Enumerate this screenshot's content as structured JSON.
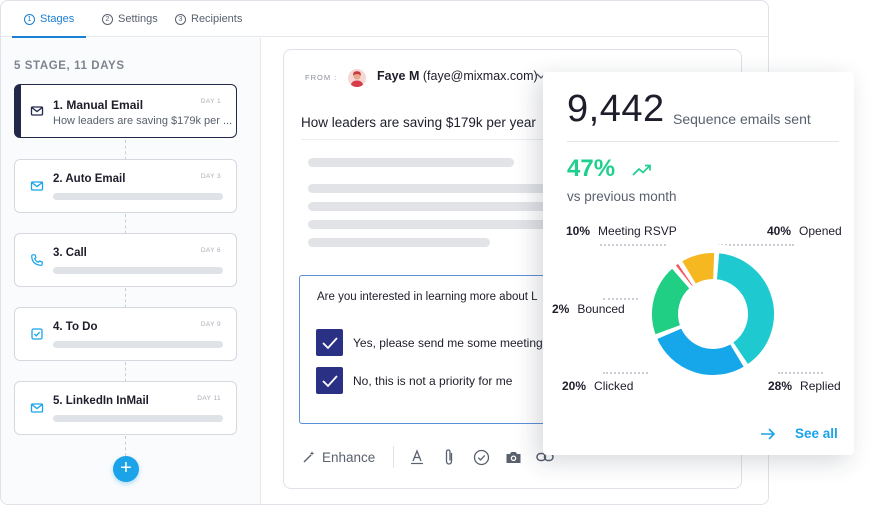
{
  "tabs": [
    {
      "num": "1",
      "label": "Stages"
    },
    {
      "num": "2",
      "label": "Settings"
    },
    {
      "num": "3",
      "label": "Recipients"
    }
  ],
  "sidebar": {
    "summary": "5 STAGE, 11 DAYS",
    "stages": [
      {
        "title": "1. Manual Email",
        "day": "DAY 1",
        "subtitle": "How leaders are saving $179k per ...",
        "icon": "envelope-icon"
      },
      {
        "title": "2. Auto Email",
        "day": "DAY 3",
        "icon": "envelope-icon"
      },
      {
        "title": "3. Call",
        "day": "DAY 6",
        "icon": "phone-icon"
      },
      {
        "title": "4. To Do",
        "day": "DAY 9",
        "icon": "checkbox-icon"
      },
      {
        "title": "5. LinkedIn InMail",
        "day": "DAY 11",
        "icon": "envelope-icon"
      }
    ],
    "add_icon": "+"
  },
  "email": {
    "from_label": "FROM :",
    "from_name": "Faye M",
    "from_email": "(faye@mixmax.com)",
    "subject": "How leaders are saving $179k per year",
    "question": "Are you interested in learning more about L",
    "options": [
      "Yes, please send me some meeting",
      "No, this is not a priority for me"
    ],
    "toolbar": {
      "enhance_label": "Enhance"
    }
  },
  "stats": {
    "total": "9,442",
    "total_label": "Sequence emails sent",
    "change": "47%",
    "change_label": "vs previous month",
    "see_all": "See all",
    "colors": {
      "accent": "#1aa3e9",
      "positive": "#1fcf8d"
    }
  },
  "chart_data": {
    "type": "pie",
    "title": "",
    "categories": [
      "Opened",
      "Replied",
      "Clicked",
      "Bounced",
      "Meeting RSVP"
    ],
    "values": [
      40,
      28,
      20,
      2,
      10
    ],
    "labels": [
      "40%",
      "28%",
      "20%",
      "2%",
      "10%"
    ],
    "colors": [
      "#1ecad0",
      "#16a6ea",
      "#21cf84",
      "#f4575e",
      "#f5b820"
    ],
    "donut": true
  }
}
